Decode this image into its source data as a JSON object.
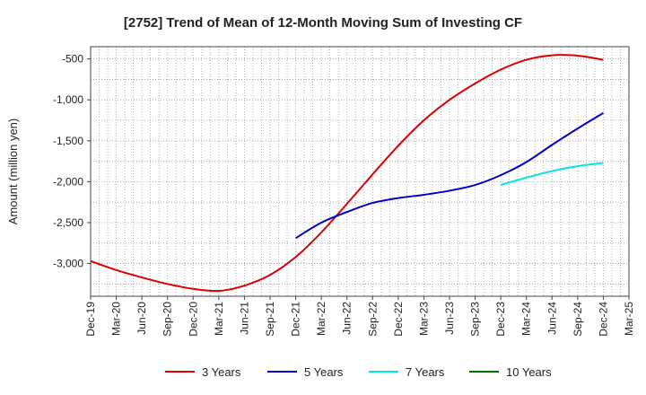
{
  "chart_data": {
    "type": "line",
    "title": "[2752]  Trend of Mean of 12-Month Moving Sum of Investing CF",
    "xlabel": "",
    "ylabel": "Amount (million yen)",
    "x_ticks": [
      "Dec-19",
      "Mar-20",
      "Jun-20",
      "Sep-20",
      "Dec-20",
      "Mar-21",
      "Jun-21",
      "Sep-21",
      "Dec-21",
      "Mar-22",
      "Jun-22",
      "Sep-22",
      "Dec-22",
      "Mar-23",
      "Jun-23",
      "Sep-23",
      "Dec-23",
      "Mar-24",
      "Jun-24",
      "Sep-24",
      "Dec-24",
      "Mar-25"
    ],
    "y_ticks": [
      -500,
      -1000,
      -1500,
      -2000,
      -2500,
      -3000
    ],
    "y_tick_labels": [
      "-500",
      "-1,000",
      "-1,500",
      "-2,000",
      "-2,500",
      "-3,000"
    ],
    "ylim": [
      -3400,
      -350
    ],
    "grid": true,
    "legend_position": "bottom",
    "series": [
      {
        "name": "3 Years",
        "color": "#dd0000",
        "points": [
          [
            "Dec-19",
            -2970
          ],
          [
            "Mar-20",
            -3080
          ],
          [
            "Jun-20",
            -3170
          ],
          [
            "Sep-20",
            -3250
          ],
          [
            "Dec-20",
            -3310
          ],
          [
            "Mar-21",
            -3335
          ],
          [
            "Jun-21",
            -3270
          ],
          [
            "Sep-21",
            -3140
          ],
          [
            "Dec-21",
            -2920
          ],
          [
            "Mar-22",
            -2620
          ],
          [
            "Jun-22",
            -2270
          ],
          [
            "Sep-22",
            -1910
          ],
          [
            "Dec-22",
            -1560
          ],
          [
            "Mar-23",
            -1250
          ],
          [
            "Jun-23",
            -1000
          ],
          [
            "Sep-23",
            -800
          ],
          [
            "Dec-23",
            -630
          ],
          [
            "Mar-24",
            -510
          ],
          [
            "Jun-24",
            -455
          ],
          [
            "Sep-24",
            -460
          ],
          [
            "Dec-24",
            -510
          ]
        ]
      },
      {
        "name": "5 Years",
        "color": "#0000cc",
        "points": [
          [
            "Dec-21",
            -2690
          ],
          [
            "Mar-22",
            -2500
          ],
          [
            "Jun-22",
            -2370
          ],
          [
            "Sep-22",
            -2260
          ],
          [
            "Dec-22",
            -2200
          ],
          [
            "Mar-23",
            -2160
          ],
          [
            "Jun-23",
            -2110
          ],
          [
            "Sep-23",
            -2040
          ],
          [
            "Dec-23",
            -1920
          ],
          [
            "Mar-24",
            -1760
          ],
          [
            "Jun-24",
            -1550
          ],
          [
            "Sep-24",
            -1350
          ],
          [
            "Dec-24",
            -1160
          ]
        ]
      },
      {
        "name": "7 Years",
        "color": "#00e5e5",
        "points": [
          [
            "Dec-23",
            -2040
          ],
          [
            "Mar-24",
            -1950
          ],
          [
            "Jun-24",
            -1870
          ],
          [
            "Sep-24",
            -1810
          ],
          [
            "Dec-24",
            -1770
          ]
        ]
      },
      {
        "name": "10 Years",
        "color": "#007700",
        "points": []
      }
    ]
  }
}
